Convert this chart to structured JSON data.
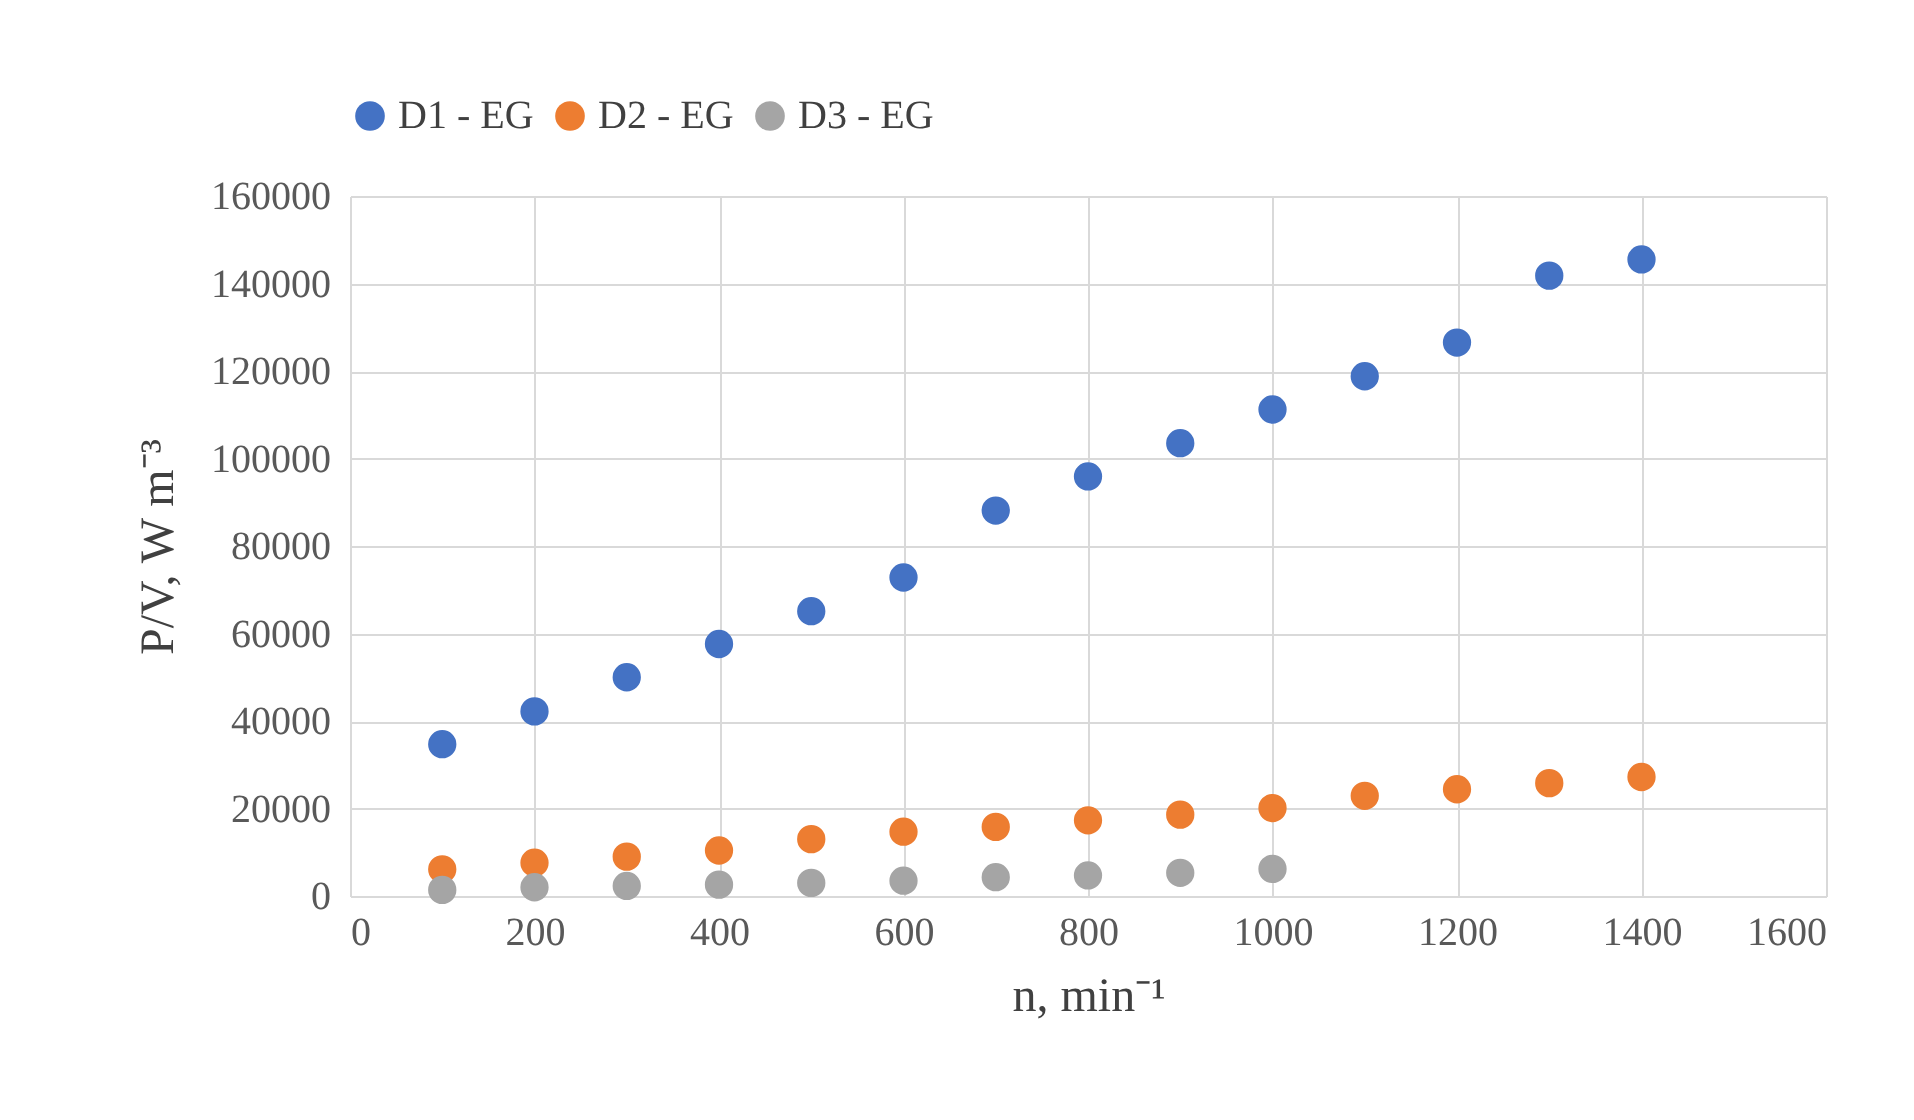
{
  "chart_data": {
    "type": "scatter",
    "xlabel": "n, min⁻¹",
    "ylabel": "P/V, W m⁻³",
    "x": [
      100,
      200,
      300,
      400,
      500,
      600,
      700,
      800,
      900,
      1000,
      1100,
      1200,
      1300,
      1400
    ],
    "series": [
      {
        "name": "D1 - EG",
        "color": "#4472c4",
        "values": [
          34700,
          42200,
          50000,
          57600,
          65100,
          72800,
          88100,
          95900,
          103500,
          111200,
          118800,
          126500,
          141800,
          145500
        ]
      },
      {
        "name": "D2 - EG",
        "color": "#ed7d31",
        "values": [
          6100,
          7600,
          9000,
          10400,
          13000,
          14700,
          15800,
          17300,
          18600,
          20100,
          22900,
          24400,
          25800,
          27200
        ]
      },
      {
        "name": "D3 - EG",
        "color": "#a5a5a5",
        "values": [
          1400,
          2000,
          2300,
          2600,
          3000,
          3500,
          4300,
          4700,
          5300,
          6200,
          null,
          null,
          null,
          null
        ]
      }
    ],
    "xlim": [
      0,
      1600
    ],
    "xticks": [
      0,
      200,
      400,
      600,
      800,
      1000,
      1200,
      1400,
      1600
    ],
    "ylim": [
      0,
      160000
    ],
    "yticks": [
      0,
      20000,
      40000,
      60000,
      80000,
      100000,
      120000,
      140000,
      160000
    ],
    "grid": true,
    "legend": "top",
    "marker": "circle"
  }
}
